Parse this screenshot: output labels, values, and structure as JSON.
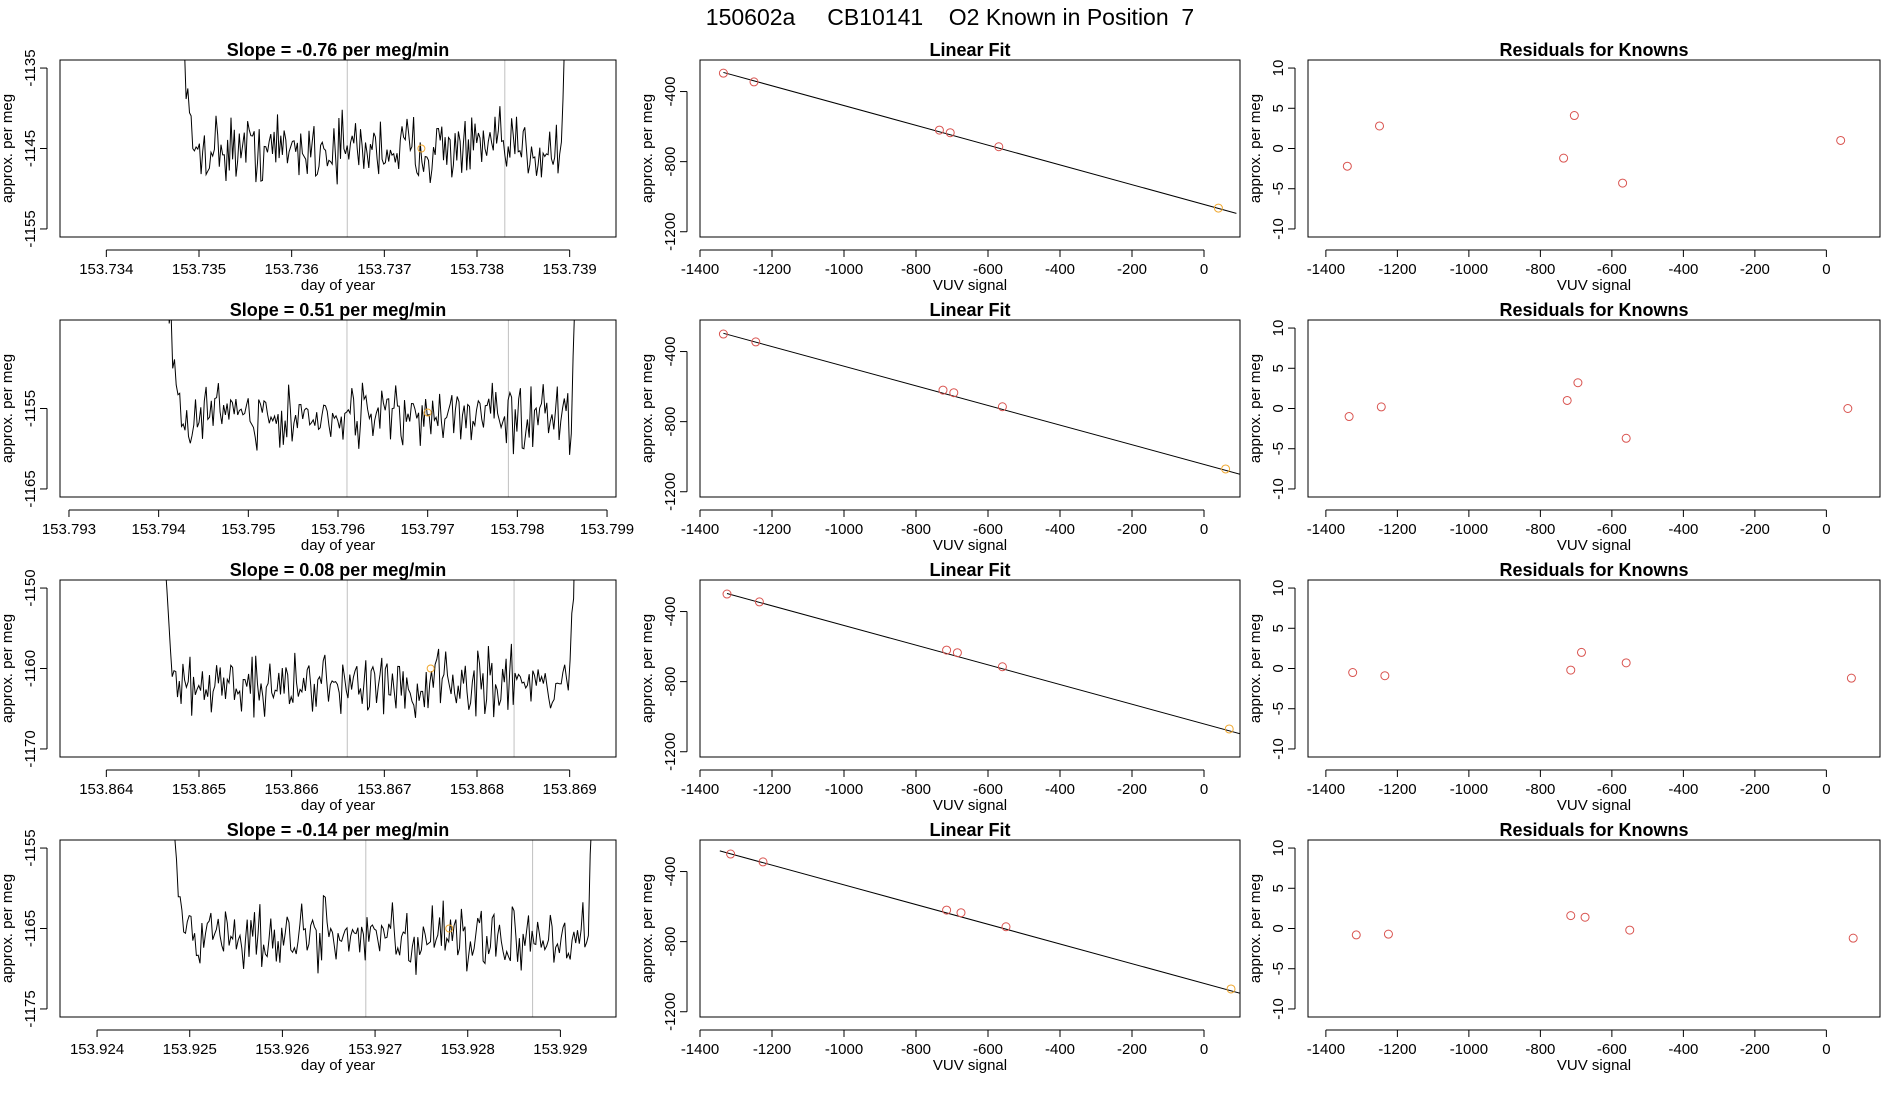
{
  "figure": {
    "title": "150602a     CB10141    O2 Known in Position  7",
    "colors": {
      "line": "#000000",
      "point_red": "#d9534f",
      "point_orange": "#f0a830",
      "ref_line": "#c0c0c0"
    }
  },
  "chart_data": [
    {
      "type": "line",
      "title": "Slope =  -0.76  per meg/min",
      "xlabel": "day of year",
      "ylabel": "approx. per meg",
      "xlim": [
        153.7335,
        153.7395
      ],
      "ylim": [
        -1156,
        -1134
      ],
      "xticks": [
        153.734,
        153.735,
        153.736,
        153.737,
        153.738,
        153.739
      ],
      "yticks": [
        -1135,
        -1145,
        -1155
      ],
      "trace_start": 153.7347,
      "trace_end": 153.739,
      "trace_mean": -1145,
      "trace_amp": 3,
      "ref_lines": [
        153.7366,
        153.7383
      ],
      "marker": {
        "x": 153.7374,
        "y": -1145
      }
    },
    {
      "type": "scatter",
      "title": "Linear Fit",
      "xlabel": "VUV signal",
      "ylabel": "approx. per meg",
      "xlim": [
        -1400,
        100
      ],
      "ylim": [
        -1230,
        -220
      ],
      "xticks": [
        -1400,
        -1200,
        -1000,
        -800,
        -600,
        -400,
        -200,
        0
      ],
      "yticks": [
        -400,
        -800,
        -1200
      ],
      "points": [
        [
          -1335,
          -295
        ],
        [
          -1250,
          -345
        ],
        [
          -735,
          -620
        ],
        [
          -705,
          -635
        ],
        [
          -570,
          -715
        ],
        [
          40,
          -1065
        ]
      ],
      "fit_line": [
        [
          -1335,
          -291
        ],
        [
          90,
          -1095
        ]
      ]
    },
    {
      "type": "scatter",
      "title": "Residuals for Knowns",
      "xlabel": "VUV signal",
      "ylabel": "approx. per meg",
      "xlim": [
        -1450,
        150
      ],
      "ylim": [
        -11,
        11
      ],
      "xticks": [
        -1400,
        -1200,
        -1000,
        -800,
        -600,
        -400,
        -200,
        0
      ],
      "yticks": [
        10,
        5,
        0,
        -5,
        -10
      ],
      "points": [
        [
          -1340,
          -2.2
        ],
        [
          -1250,
          2.8
        ],
        [
          -735,
          -1.2
        ],
        [
          -705,
          4.1
        ],
        [
          -570,
          -4.3
        ],
        [
          40,
          1.0
        ]
      ]
    },
    {
      "type": "line",
      "title": "Slope =  0.51  per meg/min",
      "xlabel": "day of year",
      "ylabel": "approx. per meg",
      "xlim": [
        153.7929,
        153.7991
      ],
      "ylim": [
        -1166,
        -1144
      ],
      "xticks": [
        153.793,
        153.794,
        153.795,
        153.796,
        153.797,
        153.798,
        153.799
      ],
      "yticks": [
        -1155,
        -1165
      ],
      "trace_start": 153.794,
      "trace_end": 153.7987,
      "trace_mean": -1156,
      "trace_amp": 3,
      "ref_lines": [
        153.7961,
        153.7979
      ],
      "marker": {
        "x": 153.797,
        "y": -1155.5
      }
    },
    {
      "type": "scatter",
      "title": "Linear Fit",
      "xlabel": "VUV signal",
      "ylabel": "approx. per meg",
      "xlim": [
        -1400,
        100
      ],
      "ylim": [
        -1230,
        -220
      ],
      "xticks": [
        -1400,
        -1200,
        -1000,
        -800,
        -600,
        -400,
        -200,
        0
      ],
      "yticks": [
        -400,
        -800,
        -1200
      ],
      "points": [
        [
          -1335,
          -300
        ],
        [
          -1245,
          -345
        ],
        [
          -725,
          -620
        ],
        [
          -695,
          -635
        ],
        [
          -560,
          -715
        ],
        [
          60,
          -1070
        ]
      ],
      "fit_line": [
        [
          -1335,
          -296
        ],
        [
          100,
          -1100
        ]
      ]
    },
    {
      "type": "scatter",
      "title": "Residuals for Knowns",
      "xlabel": "VUV signal",
      "ylabel": "approx. per meg",
      "xlim": [
        -1450,
        150
      ],
      "ylim": [
        -11,
        11
      ],
      "xticks": [
        -1400,
        -1200,
        -1000,
        -800,
        -600,
        -400,
        -200,
        0
      ],
      "yticks": [
        10,
        5,
        0,
        -5,
        -10
      ],
      "points": [
        [
          -1335,
          -1.0
        ],
        [
          -1245,
          0.2
        ],
        [
          -725,
          1.0
        ],
        [
          -695,
          3.2
        ],
        [
          -560,
          -3.7
        ],
        [
          60,
          0.0
        ]
      ]
    },
    {
      "type": "line",
      "title": "Slope =  0.08  per meg/min",
      "xlabel": "day of year",
      "ylabel": "approx. per meg",
      "xlim": [
        153.8635,
        153.8695
      ],
      "ylim": [
        -1171,
        -1149
      ],
      "xticks": [
        153.864,
        153.865,
        153.866,
        153.867,
        153.868,
        153.869
      ],
      "yticks": [
        -1150,
        -1160,
        -1170
      ],
      "trace_start": 153.8645,
      "trace_end": 153.8691,
      "trace_mean": -1162,
      "trace_amp": 3,
      "ref_lines": [
        153.8666,
        153.8684
      ],
      "marker": {
        "x": 153.8675,
        "y": -1160
      }
    },
    {
      "type": "scatter",
      "title": "Linear Fit",
      "xlabel": "VUV signal",
      "ylabel": "approx. per meg",
      "xlim": [
        -1400,
        100
      ],
      "ylim": [
        -1230,
        -220
      ],
      "xticks": [
        -1400,
        -1200,
        -1000,
        -800,
        -600,
        -400,
        -200,
        0
      ],
      "yticks": [
        -400,
        -800,
        -1200
      ],
      "points": [
        [
          -1325,
          -300
        ],
        [
          -1235,
          -345
        ],
        [
          -715,
          -620
        ],
        [
          -685,
          -635
        ],
        [
          -560,
          -715
        ],
        [
          70,
          -1070
        ]
      ],
      "fit_line": [
        [
          -1325,
          -297
        ],
        [
          105,
          -1100
        ]
      ]
    },
    {
      "type": "scatter",
      "title": "Residuals for Knowns",
      "xlabel": "VUV signal",
      "ylabel": "approx. per meg",
      "xlim": [
        -1450,
        150
      ],
      "ylim": [
        -11,
        11
      ],
      "xticks": [
        -1400,
        -1200,
        -1000,
        -800,
        -600,
        -400,
        -200,
        0
      ],
      "yticks": [
        10,
        5,
        0,
        -5,
        -10
      ],
      "points": [
        [
          -1325,
          -0.5
        ],
        [
          -1235,
          -0.9
        ],
        [
          -715,
          -0.2
        ],
        [
          -685,
          2.0
        ],
        [
          -560,
          0.7
        ],
        [
          70,
          -1.2
        ]
      ]
    },
    {
      "type": "line",
      "title": "Slope =  -0.14  per meg/min",
      "xlabel": "day of year",
      "ylabel": "approx. per meg",
      "xlim": [
        153.9236,
        153.9296
      ],
      "ylim": [
        -1176,
        -1154
      ],
      "xticks": [
        153.924,
        153.925,
        153.926,
        153.927,
        153.928,
        153.929
      ],
      "yticks": [
        -1155,
        -1165,
        -1175
      ],
      "trace_start": 153.9247,
      "trace_end": 153.9294,
      "trace_mean": -1166,
      "trace_amp": 3,
      "ref_lines": [
        153.9269,
        153.9287
      ],
      "marker": {
        "x": 153.9278,
        "y": -1165
      }
    },
    {
      "type": "scatter",
      "title": "Linear Fit",
      "xlabel": "VUV signal",
      "ylabel": "approx. per meg",
      "xlim": [
        -1400,
        100
      ],
      "ylim": [
        -1230,
        -220
      ],
      "xticks": [
        -1400,
        -1200,
        -1000,
        -800,
        -600,
        -400,
        -200,
        0
      ],
      "yticks": [
        -400,
        -800,
        -1200
      ],
      "points": [
        [
          -1315,
          -300
        ],
        [
          -1225,
          -345
        ],
        [
          -715,
          -620
        ],
        [
          -675,
          -635
        ],
        [
          -550,
          -715
        ],
        [
          75,
          -1070
        ]
      ],
      "fit_line": [
        [
          -1345,
          -282
        ],
        [
          110,
          -1100
        ]
      ]
    },
    {
      "type": "scatter",
      "title": "Residuals for Knowns",
      "xlabel": "VUV signal",
      "ylabel": "approx. per meg",
      "xlim": [
        -1450,
        150
      ],
      "ylim": [
        -11,
        11
      ],
      "xticks": [
        -1400,
        -1200,
        -1000,
        -800,
        -600,
        -400,
        -200,
        0
      ],
      "yticks": [
        10,
        5,
        0,
        -5,
        -10
      ],
      "points": [
        [
          -1315,
          -0.8
        ],
        [
          -1225,
          -0.7
        ],
        [
          -715,
          1.6
        ],
        [
          -675,
          1.4
        ],
        [
          -550,
          -0.2
        ],
        [
          75,
          -1.2
        ]
      ]
    }
  ]
}
